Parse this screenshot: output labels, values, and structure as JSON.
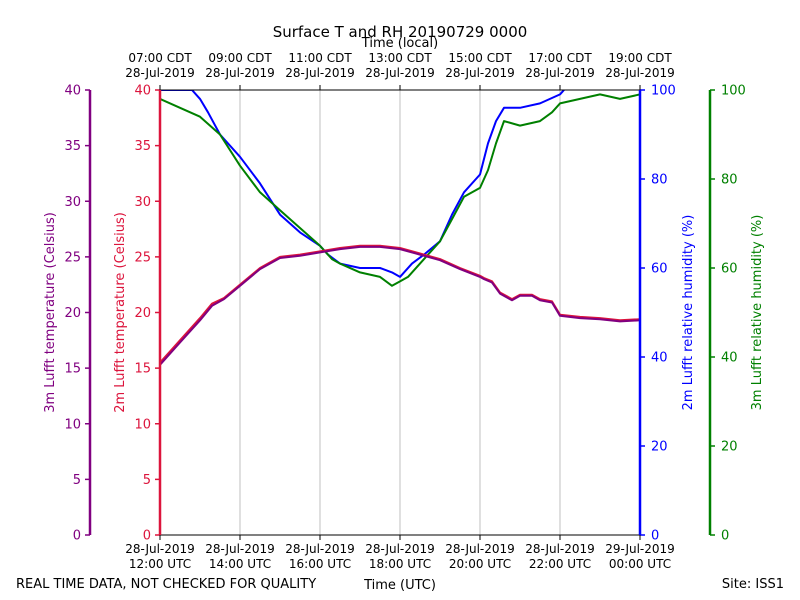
{
  "chart_data": {
    "type": "line",
    "title": "Surface T and RH 20190729 0000",
    "top_xlabel": "Time (local)",
    "xlabel": "Time (UTC)",
    "footer_left": "REAL TIME DATA, NOT CHECKED FOR QUALITY",
    "footer_right": "Site: ISS1",
    "x_range_hours_utc": [
      12,
      24
    ],
    "bottom_ticks": [
      {
        "h": 12,
        "line1": "28-Jul-2019",
        "line2": "12:00 UTC"
      },
      {
        "h": 14,
        "line1": "28-Jul-2019",
        "line2": "14:00 UTC"
      },
      {
        "h": 16,
        "line1": "28-Jul-2019",
        "line2": "16:00 UTC"
      },
      {
        "h": 18,
        "line1": "28-Jul-2019",
        "line2": "18:00 UTC"
      },
      {
        "h": 20,
        "line1": "28-Jul-2019",
        "line2": "20:00 UTC"
      },
      {
        "h": 22,
        "line1": "28-Jul-2019",
        "line2": "22:00 UTC"
      },
      {
        "h": 24,
        "line1": "29-Jul-2019",
        "line2": "00:00 UTC"
      }
    ],
    "top_ticks": [
      {
        "h": 12,
        "line1": "07:00 CDT",
        "line2": "28-Jul-2019"
      },
      {
        "h": 14,
        "line1": "09:00 CDT",
        "line2": "28-Jul-2019"
      },
      {
        "h": 16,
        "line1": "11:00 CDT",
        "line2": "28-Jul-2019"
      },
      {
        "h": 18,
        "line1": "13:00 CDT",
        "line2": "28-Jul-2019"
      },
      {
        "h": 20,
        "line1": "15:00 CDT",
        "line2": "28-Jul-2019"
      },
      {
        "h": 22,
        "line1": "17:00 CDT",
        "line2": "28-Jul-2019"
      },
      {
        "h": 24,
        "line1": "19:00 CDT",
        "line2": "28-Jul-2019"
      }
    ],
    "axes": {
      "t3m": {
        "label": "3m Lufft temperature (Celsius)",
        "ylim": [
          0,
          40
        ],
        "ticks": [
          0,
          5,
          10,
          15,
          20,
          25,
          30,
          35,
          40
        ],
        "color": "#800080"
      },
      "t2m": {
        "label": "2m Lufft temperature (Celsius)",
        "ylim": [
          0,
          40
        ],
        "ticks": [
          0,
          5,
          10,
          15,
          20,
          25,
          30,
          35,
          40
        ],
        "color": "#dc143c"
      },
      "rh2m": {
        "label": "2m Lufft relative humidity (%)",
        "ylim": [
          0,
          100
        ],
        "ticks": [
          0,
          20,
          40,
          60,
          80,
          100
        ],
        "color": "#0000ff"
      },
      "rh3m": {
        "label": "3m Lufft relative humidity (%)",
        "ylim": [
          0,
          100
        ],
        "ticks": [
          0,
          20,
          40,
          60,
          80,
          100
        ],
        "color": "#008000"
      }
    },
    "series": [
      {
        "name": "2m RH",
        "axis": "rh2m",
        "color": "#0000ff",
        "x": [
          12.0,
          12.8,
          13.0,
          13.2,
          13.5,
          14.0,
          14.5,
          15.0,
          15.5,
          16.0,
          16.2,
          16.5,
          17.0,
          17.5,
          17.8,
          18.0,
          18.3,
          18.6,
          19.0,
          19.3,
          19.6,
          20.0,
          20.2,
          20.4,
          20.6,
          21.0,
          21.5,
          22.0,
          22.1
        ],
        "y": [
          100,
          100,
          98,
          95,
          90,
          85,
          79,
          72,
          68,
          65,
          63,
          61,
          60,
          60,
          59,
          58,
          61,
          63,
          66,
          72,
          77,
          81,
          88,
          93,
          96,
          96,
          97,
          99,
          100
        ]
      },
      {
        "name": "3m RH",
        "axis": "rh3m",
        "color": "#008000",
        "x": [
          12.0,
          12.5,
          13.0,
          13.5,
          14.0,
          14.5,
          15.0,
          15.5,
          16.0,
          16.3,
          16.5,
          17.0,
          17.5,
          17.8,
          18.0,
          18.2,
          18.5,
          19.0,
          19.3,
          19.6,
          20.0,
          20.2,
          20.4,
          20.6,
          21.0,
          21.5,
          21.8,
          22.0,
          22.5,
          23.0,
          23.5,
          24.0
        ],
        "y": [
          98,
          96,
          94,
          90,
          83,
          77,
          73,
          69,
          65,
          62,
          61,
          59,
          58,
          56,
          57,
          58,
          61,
          66,
          71,
          76,
          78,
          82,
          88,
          93,
          92,
          93,
          95,
          97,
          98,
          99,
          98,
          99
        ]
      },
      {
        "name": "2m T",
        "axis": "t2m",
        "color": "#dc143c",
        "x": [
          12.0,
          12.5,
          13.0,
          13.3,
          13.6,
          14.0,
          14.5,
          15.0,
          15.5,
          16.0,
          16.5,
          17.0,
          17.5,
          18.0,
          18.5,
          19.0,
          19.5,
          20.0,
          20.1,
          20.3,
          20.5,
          20.8,
          21.0,
          21.3,
          21.5,
          21.8,
          22.0,
          22.5,
          23.0,
          23.5,
          24.0
        ],
        "y": [
          15.5,
          17.5,
          19.5,
          20.8,
          21.3,
          22.5,
          24.0,
          25.0,
          25.2,
          25.5,
          25.8,
          26.0,
          26.0,
          25.8,
          25.3,
          24.8,
          24.0,
          23.3,
          23.1,
          22.8,
          21.8,
          21.2,
          21.6,
          21.6,
          21.2,
          21.0,
          19.8,
          19.6,
          19.5,
          19.3,
          19.4
        ]
      },
      {
        "name": "3m T",
        "axis": "t3m",
        "color": "#800080",
        "x": [
          12.0,
          12.5,
          13.0,
          13.3,
          13.6,
          14.0,
          14.5,
          15.0,
          15.5,
          16.0,
          16.5,
          17.0,
          17.5,
          18.0,
          18.5,
          19.0,
          19.5,
          20.0,
          20.1,
          20.3,
          20.5,
          20.8,
          21.0,
          21.3,
          21.5,
          21.8,
          22.0,
          22.5,
          23.0,
          23.5,
          24.0
        ],
        "y": [
          15.3,
          17.3,
          19.3,
          20.6,
          21.2,
          22.4,
          23.9,
          24.9,
          25.1,
          25.4,
          25.7,
          25.9,
          25.9,
          25.7,
          25.2,
          24.7,
          23.9,
          23.2,
          23.0,
          22.7,
          21.7,
          21.1,
          21.5,
          21.5,
          21.1,
          20.9,
          19.7,
          19.5,
          19.4,
          19.2,
          19.3
        ]
      }
    ]
  }
}
